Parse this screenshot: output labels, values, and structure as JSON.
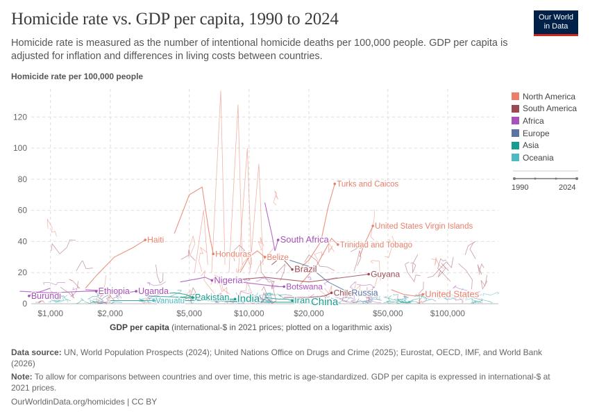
{
  "header": {
    "title": "Homicide rate vs. GDP per capita, 1990 to 2024",
    "subtitle": "Homicide rate is measured as the number of intentional homicide deaths per 100,000 people. GDP per capita is adjusted for inflation and differences in living costs between countries.",
    "logo_line1": "Our World",
    "logo_line2": "in Data"
  },
  "timeline": {
    "start": "1990",
    "end": "2024"
  },
  "footer": {
    "source_label": "Data source:",
    "source_text": "UN, World Population Prospects (2024); United Nations Office on Drugs and Crime (2025); Eurostat, OECD, IMF, and World Bank (2026)",
    "note_label": "Note:",
    "note_text": "To allow for comparisons between countries and over time, this metric is age-standardized. GDP per capita is expressed in international-$ at 2021 prices.",
    "credit": "OurWorldinData.org/homicides | CC BY"
  },
  "colors": {
    "North America": "#e8806b",
    "South America": "#9a4a54",
    "Africa": "#a652ba",
    "Europe": "#5b74a2",
    "Asia": "#189c8d",
    "Oceania": "#4fb9c1"
  },
  "chart_data": {
    "type": "line",
    "title": "Homicide rate vs. GDP per capita, 1990 to 2024",
    "xlabel": "GDP per capita",
    "xlabel_note": "(international-$ in 2021 prices; plotted on a logarithmic axis)",
    "ylabel": "Homicide rate per 100,000 people",
    "x_scale": "log",
    "xlim": [
      800,
      180000
    ],
    "ylim": [
      0,
      138
    ],
    "x_ticks": [
      {
        "value": 1000,
        "label": "$1,000"
      },
      {
        "value": 2000,
        "label": "$2,000"
      },
      {
        "value": 5000,
        "label": "$5,000"
      },
      {
        "value": 10000,
        "label": "$10,000"
      },
      {
        "value": 20000,
        "label": "$20,000"
      },
      {
        "value": 50000,
        "label": "$50,000"
      },
      {
        "value": 100000,
        "label": "$100,000"
      }
    ],
    "y_ticks": [
      0,
      20,
      40,
      60,
      80,
      100,
      120
    ],
    "grid": true,
    "legend": "right",
    "legend_entries": [
      "North America",
      "South America",
      "Africa",
      "Europe",
      "Asia",
      "Oceania"
    ],
    "series": [
      {
        "name": "Haiti",
        "region": "North America",
        "x": [
          1500,
          1700,
          2100,
          2600,
          3000
        ],
        "y": [
          10,
          18,
          30,
          36,
          41
        ],
        "label_size": 12
      },
      {
        "name": "Honduras",
        "region": "North America",
        "x": [
          4200,
          5000,
          5800,
          6300,
          6600
        ],
        "y": [
          45,
          70,
          75,
          45,
          32
        ],
        "label_size": 12
      },
      {
        "name": "Turks and Caicos",
        "region": "North America",
        "x": [
          17000,
          20000,
          23000,
          25000,
          27000
        ],
        "y": [
          20,
          28,
          40,
          62,
          77
        ],
        "label_size": 11.5
      },
      {
        "name": "United States Virgin Islands",
        "region": "North America",
        "x": [
          36000,
          38000,
          40000,
          42000
        ],
        "y": [
          30,
          38,
          44,
          50
        ],
        "label_size": 11.5
      },
      {
        "name": "Trinidad and Tobago",
        "region": "North America",
        "x": [
          18000,
          22000,
          26000,
          28000
        ],
        "y": [
          12,
          25,
          42,
          38
        ],
        "label_size": 11.5
      },
      {
        "name": "Belize",
        "region": "North America",
        "x": [
          9000,
          10000,
          11000,
          12000
        ],
        "y": [
          20,
          30,
          34,
          30
        ],
        "label_size": 11.5
      },
      {
        "name": "United States",
        "region": "North America",
        "x": [
          52000,
          60000,
          68000,
          75000
        ],
        "y": [
          9,
          6,
          5,
          6
        ],
        "label_size": 13
      },
      {
        "name": "Brazil",
        "region": "South America",
        "x": [
          13000,
          14500,
          15500,
          16500
        ],
        "y": [
          25,
          30,
          26,
          22
        ],
        "label_size": 13
      },
      {
        "name": "Guyana",
        "region": "South America",
        "x": [
          8000,
          12000,
          20000,
          40000
        ],
        "y": [
          15,
          17,
          14,
          19
        ],
        "label_size": 12
      },
      {
        "name": "Chile",
        "region": "South America",
        "x": [
          15000,
          20000,
          24000,
          26000
        ],
        "y": [
          4,
          4,
          5,
          7
        ],
        "label_size": 12
      },
      {
        "name": "South Africa",
        "region": "Africa",
        "x": [
          12000,
          13000,
          13500,
          14000
        ],
        "y": [
          65,
          45,
          34,
          41
        ],
        "label_size": 13
      },
      {
        "name": "Nigeria",
        "region": "Africa",
        "x": [
          4500,
          5500,
          6000,
          6500
        ],
        "y": [
          14,
          16,
          17,
          15
        ],
        "label_size": 13
      },
      {
        "name": "Botswana",
        "region": "Africa",
        "x": [
          9000,
          12000,
          14000,
          15000
        ],
        "y": [
          14,
          12,
          11,
          11
        ],
        "label_size": 12
      },
      {
        "name": "Ethiopia",
        "region": "Africa",
        "x": [
          700,
          1000,
          1500,
          1700
        ],
        "y": [
          8,
          7,
          8,
          8
        ],
        "label_size": 12.5
      },
      {
        "name": "Uganda",
        "region": "Africa",
        "x": [
          1500,
          2000,
          2400,
          2700
        ],
        "y": [
          9,
          8,
          7,
          8
        ],
        "label_size": 12.5
      },
      {
        "name": "Burundi",
        "region": "Africa",
        "x": [
          1000,
          900,
          800,
          780
        ],
        "y": [
          10,
          8,
          6,
          5
        ],
        "label_size": 12.5
      },
      {
        "name": "Russia",
        "region": "Europe",
        "x": [
          16000,
          20000,
          25000,
          32000
        ],
        "y": [
          28,
          24,
          14,
          7
        ],
        "label_size": 12.5
      },
      {
        "name": "Pakistan",
        "region": "Asia",
        "x": [
          3500,
          4200,
          4800,
          5200
        ],
        "y": [
          6,
          7,
          6,
          4
        ],
        "label_size": 13
      },
      {
        "name": "India",
        "region": "Asia",
        "x": [
          3000,
          5000,
          7000,
          8500
        ],
        "y": [
          5,
          4,
          3,
          3
        ],
        "label_size": 15
      },
      {
        "name": "Iran",
        "region": "Asia",
        "x": [
          12000,
          14000,
          15500,
          16500
        ],
        "y": [
          4,
          3,
          3,
          2
        ],
        "label_size": 13
      },
      {
        "name": "China",
        "region": "Asia",
        "x": [
          2000,
          6000,
          12000,
          20000
        ],
        "y": [
          2,
          2,
          1,
          1
        ],
        "label_size": 15
      },
      {
        "name": "Vanuatu",
        "region": "Oceania",
        "x": [
          2800,
          3000,
          3200,
          3300
        ],
        "y": [
          3,
          2,
          2,
          2
        ],
        "label_size": 11.5
      }
    ]
  }
}
